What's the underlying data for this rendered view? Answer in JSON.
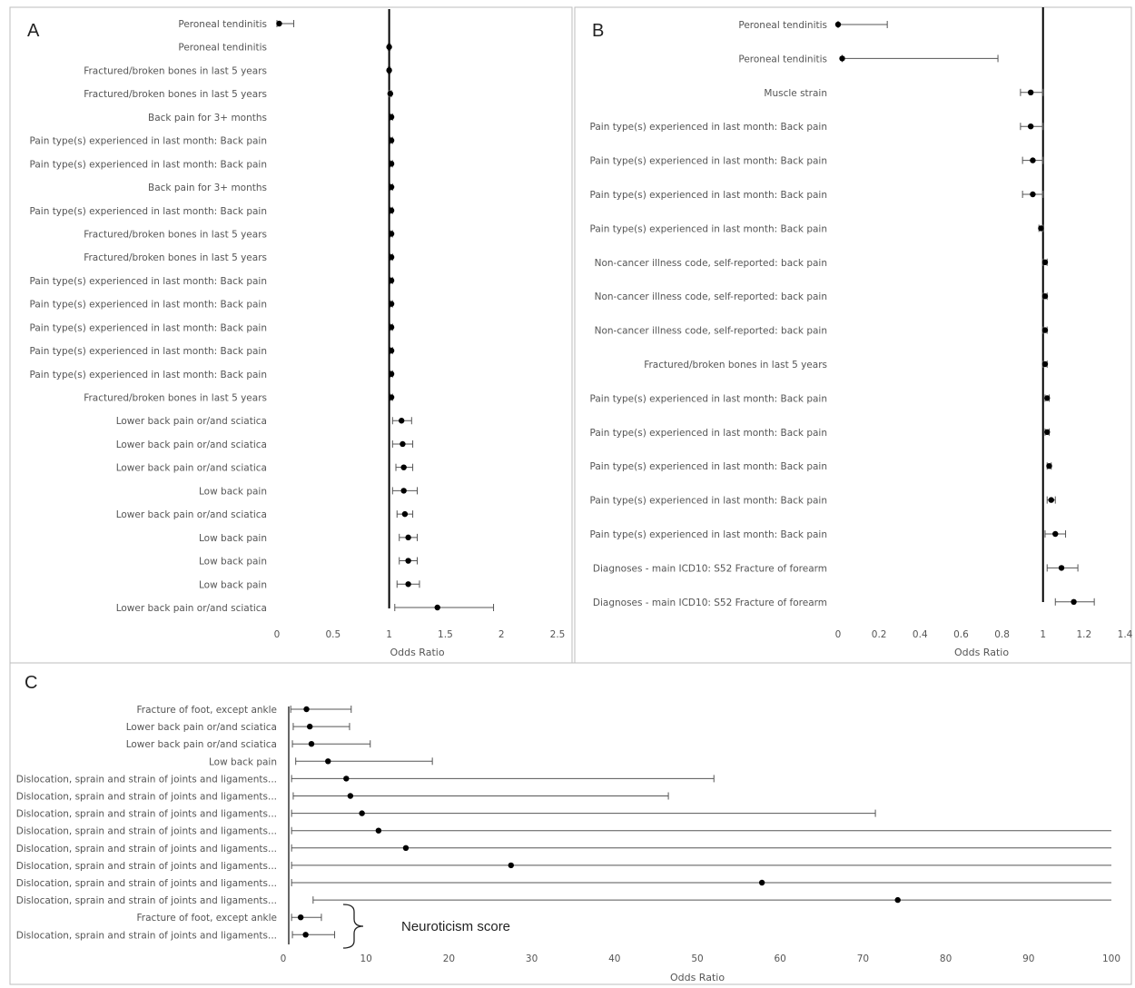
{
  "chart_data": [
    {
      "type": "forest",
      "panel_letter": "A",
      "xlabel": "Odds Ratio",
      "xlim": [
        0,
        2.5
      ],
      "xticks": [
        "0",
        "0.5",
        "1",
        "1.5",
        "2",
        "2.5"
      ],
      "reference_line": 1,
      "rows": [
        {
          "label": "Peroneal tendinitis",
          "or": 0.02,
          "lo": 0.0,
          "hi": 0.15
        },
        {
          "label": "Peroneal tendinitis",
          "or": 1.0,
          "lo": 0.99,
          "hi": 1.01
        },
        {
          "label": "Fractured/broken bones in last 5 years",
          "or": 1.0,
          "lo": 0.99,
          "hi": 1.01
        },
        {
          "label": "Fractured/broken bones in last 5 years",
          "or": 1.01,
          "lo": 1.0,
          "hi": 1.02
        },
        {
          "label": "Back pain for 3+ months",
          "or": 1.02,
          "lo": 1.01,
          "hi": 1.03
        },
        {
          "label": "Pain type(s) experienced in last month: Back pain",
          "or": 1.02,
          "lo": 1.01,
          "hi": 1.03
        },
        {
          "label": "Pain type(s) experienced in last month: Back pain",
          "or": 1.02,
          "lo": 1.01,
          "hi": 1.03
        },
        {
          "label": "Back pain for 3+ months",
          "or": 1.02,
          "lo": 1.01,
          "hi": 1.03
        },
        {
          "label": "Pain type(s) experienced in last month: Back pain",
          "or": 1.02,
          "lo": 1.01,
          "hi": 1.03
        },
        {
          "label": "Fractured/broken bones in last 5 years",
          "or": 1.02,
          "lo": 1.01,
          "hi": 1.03
        },
        {
          "label": "Fractured/broken bones in last 5 years",
          "or": 1.02,
          "lo": 1.01,
          "hi": 1.03
        },
        {
          "label": "Pain type(s) experienced in last month: Back pain",
          "or": 1.02,
          "lo": 1.01,
          "hi": 1.03
        },
        {
          "label": "Pain type(s) experienced in last month: Back pain",
          "or": 1.02,
          "lo": 1.01,
          "hi": 1.03
        },
        {
          "label": "Pain type(s) experienced in last month: Back pain",
          "or": 1.02,
          "lo": 1.01,
          "hi": 1.03
        },
        {
          "label": "Pain type(s) experienced in last month: Back pain",
          "or": 1.02,
          "lo": 1.01,
          "hi": 1.03
        },
        {
          "label": "Pain type(s) experienced in last month: Back pain",
          "or": 1.02,
          "lo": 1.01,
          "hi": 1.03
        },
        {
          "label": "Fractured/broken bones in last 5 years",
          "or": 1.02,
          "lo": 1.01,
          "hi": 1.03
        },
        {
          "label": "Lower back pain or/and sciatica",
          "or": 1.11,
          "lo": 1.03,
          "hi": 1.2
        },
        {
          "label": "Lower back pain or/and sciatica",
          "or": 1.12,
          "lo": 1.03,
          "hi": 1.21
        },
        {
          "label": "Lower back pain or/and sciatica",
          "or": 1.13,
          "lo": 1.06,
          "hi": 1.21
        },
        {
          "label": "Low back pain",
          "or": 1.13,
          "lo": 1.03,
          "hi": 1.25
        },
        {
          "label": "Lower back pain or/and sciatica",
          "or": 1.14,
          "lo": 1.07,
          "hi": 1.21
        },
        {
          "label": "Low back pain",
          "or": 1.17,
          "lo": 1.09,
          "hi": 1.25
        },
        {
          "label": "Low back pain",
          "or": 1.17,
          "lo": 1.09,
          "hi": 1.25
        },
        {
          "label": "Low back pain",
          "or": 1.17,
          "lo": 1.07,
          "hi": 1.27
        },
        {
          "label": "Lower back pain or/and sciatica",
          "or": 1.43,
          "lo": 1.05,
          "hi": 1.93
        }
      ]
    },
    {
      "type": "forest",
      "panel_letter": "B",
      "xlabel": "Odds Ratio",
      "xlim": [
        0,
        1.4
      ],
      "xticks": [
        "0",
        "0.2",
        "0.4",
        "0.6",
        "0.8",
        "1",
        "1.2",
        "1.4"
      ],
      "reference_line": 1,
      "rows": [
        {
          "label": "Peroneal tendinitis",
          "or": 0.0,
          "lo": 0.0,
          "hi": 0.24
        },
        {
          "label": "Peroneal tendinitis",
          "or": 0.02,
          "lo": 0.02,
          "hi": 0.78
        },
        {
          "label": "Muscle strain",
          "or": 0.94,
          "lo": 0.89,
          "hi": 1.0
        },
        {
          "label": "Pain type(s) experienced in last month: Back pain",
          "or": 0.94,
          "lo": 0.89,
          "hi": 1.0
        },
        {
          "label": "Pain type(s) experienced in last month: Back pain",
          "or": 0.95,
          "lo": 0.9,
          "hi": 1.0
        },
        {
          "label": "Pain type(s) experienced in last month: Back pain",
          "or": 0.95,
          "lo": 0.9,
          "hi": 1.0
        },
        {
          "label": "Pain type(s) experienced in last month: Back pain",
          "or": 0.99,
          "lo": 0.98,
          "hi": 1.0
        },
        {
          "label": "Non-cancer illness code, self-reported: back pain",
          "or": 1.01,
          "lo": 1.0,
          "hi": 1.02
        },
        {
          "label": "Non-cancer illness code, self-reported: back pain",
          "or": 1.01,
          "lo": 1.0,
          "hi": 1.02
        },
        {
          "label": "Non-cancer illness code, self-reported: back pain",
          "or": 1.01,
          "lo": 1.0,
          "hi": 1.02
        },
        {
          "label": "Fractured/broken bones in last 5 years",
          "or": 1.01,
          "lo": 1.0,
          "hi": 1.02
        },
        {
          "label": "Pain type(s) experienced in last month: Back pain",
          "or": 1.02,
          "lo": 1.01,
          "hi": 1.03
        },
        {
          "label": "Pain type(s) experienced in last month: Back pain",
          "or": 1.02,
          "lo": 1.01,
          "hi": 1.03
        },
        {
          "label": "Pain type(s) experienced in last month: Back pain",
          "or": 1.03,
          "lo": 1.02,
          "hi": 1.04
        },
        {
          "label": "Pain type(s) experienced in last month: Back pain",
          "or": 1.04,
          "lo": 1.02,
          "hi": 1.06
        },
        {
          "label": "Pain type(s) experienced in last month: Back pain",
          "or": 1.06,
          "lo": 1.01,
          "hi": 1.11
        },
        {
          "label": "Diagnoses - main ICD10: S52 Fracture of forearm",
          "or": 1.09,
          "lo": 1.02,
          "hi": 1.17
        },
        {
          "label": "Diagnoses - main ICD10: S52 Fracture of forearm",
          "or": 1.15,
          "lo": 1.06,
          "hi": 1.25
        }
      ]
    },
    {
      "type": "forest",
      "panel_letter": "C",
      "xlabel": "Odds Ratio",
      "xlim": [
        0,
        100
      ],
      "xticks": [
        "0",
        "10",
        "20",
        "30",
        "40",
        "50",
        "60",
        "70",
        "80",
        "90",
        "100"
      ],
      "annotation": "Neuroticism score",
      "rows": [
        {
          "label": "Fracture of foot, except ankle",
          "or": 2.8,
          "lo": 0.9,
          "hi": 8.2
        },
        {
          "label": "Lower back pain or/and sciatica",
          "or": 3.2,
          "lo": 1.2,
          "hi": 8.0
        },
        {
          "label": "Lower back pain or/and sciatica",
          "or": 3.4,
          "lo": 1.1,
          "hi": 10.5
        },
        {
          "label": "Low back pain",
          "or": 5.4,
          "lo": 1.5,
          "hi": 18.0
        },
        {
          "label": "Dislocation, sprain and strain of joints and ligaments...",
          "or": 7.6,
          "lo": 1.0,
          "hi": 52.0
        },
        {
          "label": "Dislocation, sprain and strain of joints and ligaments...",
          "or": 8.1,
          "lo": 1.2,
          "hi": 46.5
        },
        {
          "label": "Dislocation, sprain and strain of joints and ligaments...",
          "or": 9.5,
          "lo": 1.0,
          "hi": 71.5
        },
        {
          "label": "Dislocation, sprain and strain of joints and ligaments...",
          "or": 11.5,
          "lo": 1.0,
          "hi": 100
        },
        {
          "label": "Dislocation, sprain and strain of joints and ligaments...",
          "or": 14.8,
          "lo": 1.0,
          "hi": 100
        },
        {
          "label": "Dislocation, sprain and strain of joints and ligaments...",
          "or": 27.5,
          "lo": 1.0,
          "hi": 100
        },
        {
          "label": "Dislocation, sprain and strain of joints and ligaments...",
          "or": 57.8,
          "lo": 1.0,
          "hi": 100
        },
        {
          "label": "Dislocation, sprain and strain of joints and ligaments...",
          "or": 74.2,
          "lo": 3.6,
          "hi": 100
        },
        {
          "label": "Fracture of foot, except ankle",
          "or": 2.1,
          "lo": 1.0,
          "hi": 4.6
        },
        {
          "label": "Dislocation, sprain and strain of joints and ligaments...",
          "or": 2.7,
          "lo": 1.1,
          "hi": 6.2
        }
      ]
    }
  ]
}
